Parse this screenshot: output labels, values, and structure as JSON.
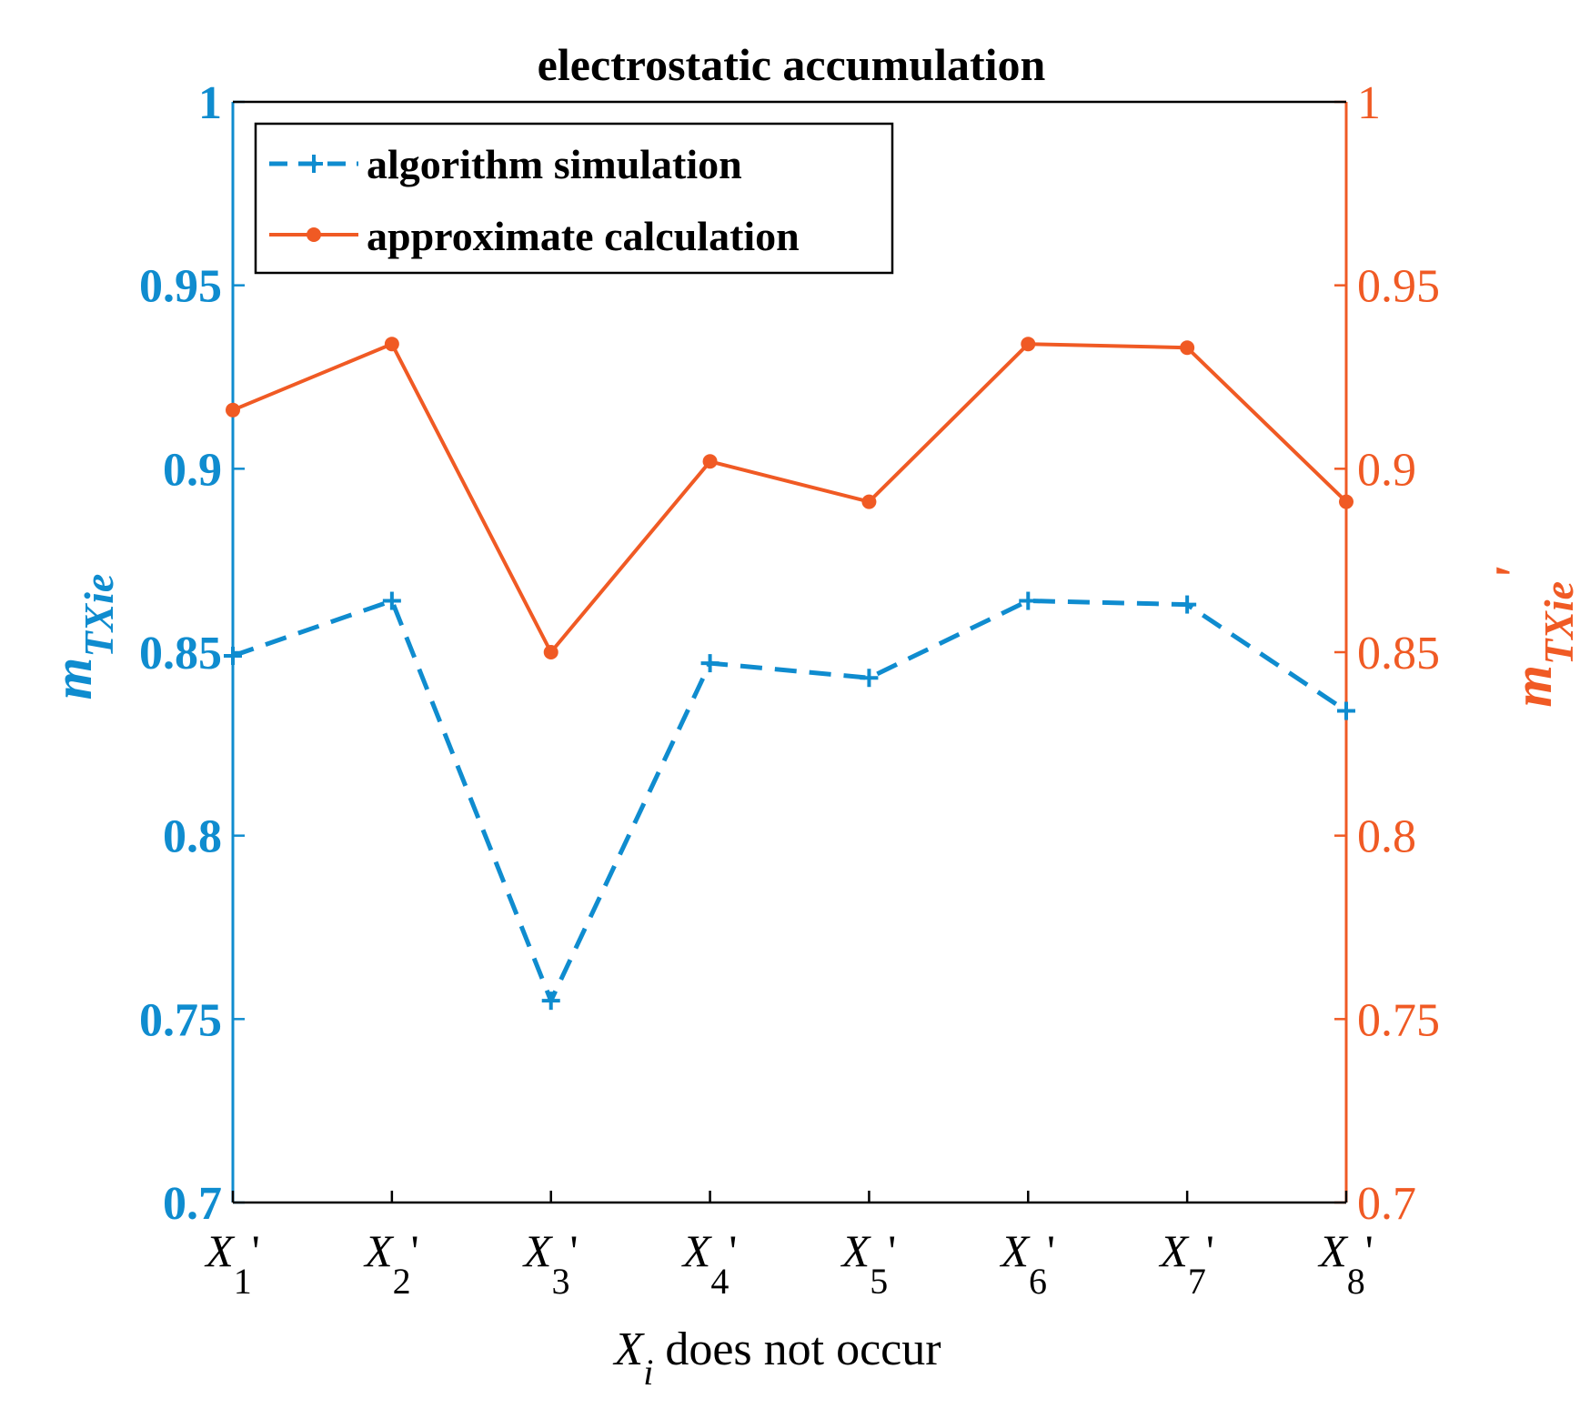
{
  "chart_data": {
    "type": "line",
    "title": "electrostatic accumulation",
    "categories": [
      {
        "base": "X",
        "sub": "1",
        "prime": "'"
      },
      {
        "base": "X",
        "sub": "2",
        "prime": "'"
      },
      {
        "base": "X",
        "sub": "3",
        "prime": "'"
      },
      {
        "base": "X",
        "sub": "4",
        "prime": "'"
      },
      {
        "base": "X",
        "sub": "5",
        "prime": "'"
      },
      {
        "base": "X",
        "sub": "6",
        "prime": "'"
      },
      {
        "base": "X",
        "sub": "7",
        "prime": "'"
      },
      {
        "base": "X",
        "sub": "8",
        "prime": "'"
      }
    ],
    "series": [
      {
        "name": "algorithm simulation",
        "axis": "left",
        "style": "dashed",
        "marker": "plus",
        "color": "#0f8ccf",
        "values": [
          0.849,
          0.864,
          0.755,
          0.847,
          0.843,
          0.864,
          0.863,
          0.834
        ]
      },
      {
        "name": "approximate calculation",
        "axis": "right",
        "style": "solid",
        "marker": "dot",
        "color": "#f05a24",
        "values": [
          0.916,
          0.934,
          0.85,
          0.902,
          0.891,
          0.934,
          0.933,
          0.891
        ]
      }
    ],
    "xlabel": {
      "base": "X",
      "sub": "i",
      "rest": " does not occur"
    },
    "ylabel_left": {
      "base": "m",
      "sub": "TXie",
      "prime": ""
    },
    "ylabel_right": {
      "base": "m",
      "sub": "TXie",
      "prime": "'"
    },
    "ylim_left": [
      0.7,
      1
    ],
    "ylim_right": [
      0.7,
      1
    ],
    "yticks": [
      "0.7",
      "0.75",
      "0.8",
      "0.85",
      "0.9",
      "0.95",
      "1"
    ],
    "ytick_values": [
      0.7,
      0.75,
      0.8,
      0.85,
      0.9,
      0.95,
      1.0
    ],
    "legend_position": "top-left",
    "colors": {
      "left_axis": "#0f8ccf",
      "right_axis": "#f05a24",
      "frame": "#000000"
    }
  }
}
